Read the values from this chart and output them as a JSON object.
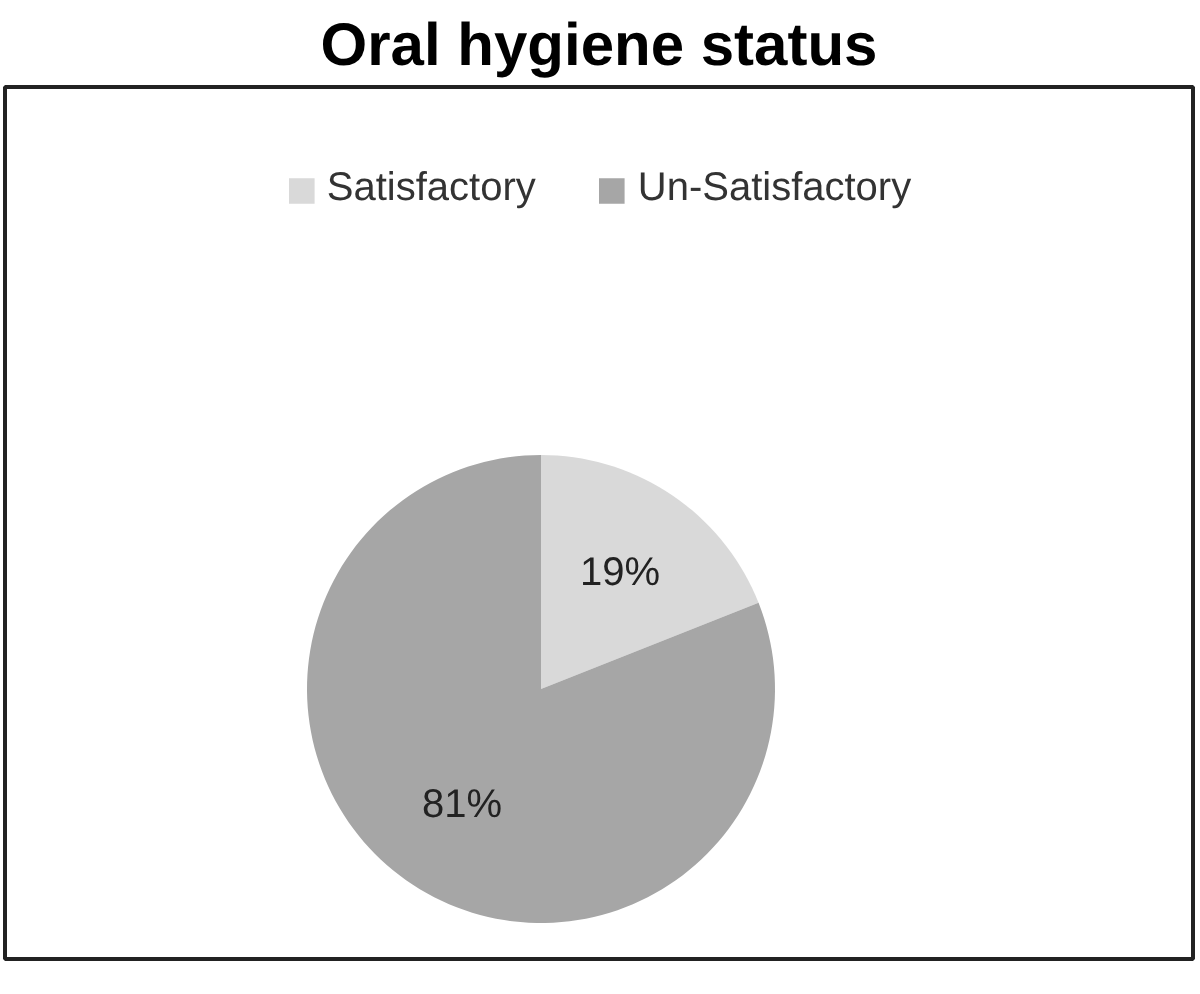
{
  "chart_data": {
    "type": "pie",
    "title": "Oral hygiene status",
    "categories": [
      "Satisfactory",
      "Un-Satisfactory"
    ],
    "values": [
      19,
      81
    ],
    "colors": [
      "#d9d9d9",
      "#a6a6a6"
    ],
    "value_labels": [
      "19%",
      "81%"
    ],
    "legend": "top"
  }
}
